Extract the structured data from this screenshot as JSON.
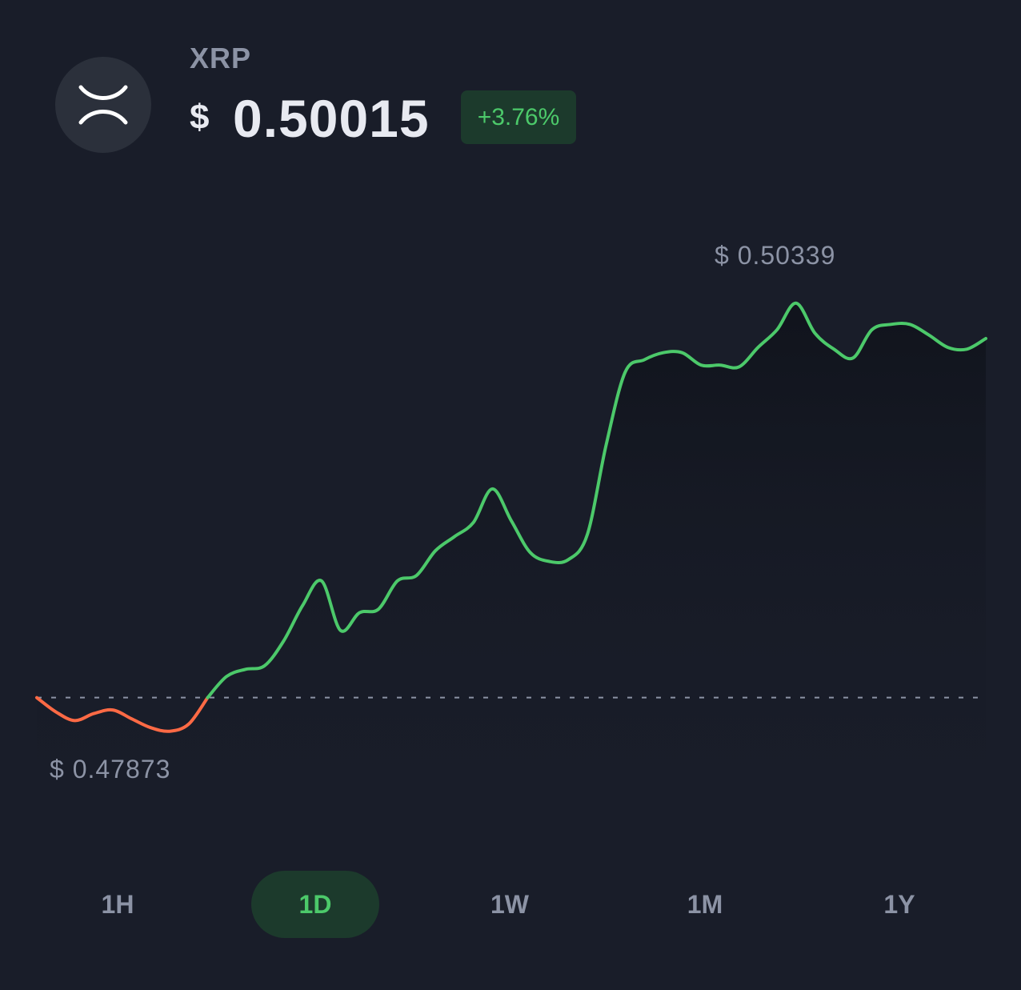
{
  "asset": {
    "symbol": "XRP",
    "icon": "xrp-logo-icon",
    "currency_symbol": "$",
    "price": "0.50015",
    "change": "+3.76%"
  },
  "colors": {
    "background": "#191d29",
    "positive": "#4cc96a",
    "negative": "#ff6a45",
    "muted_text": "#8c93a5",
    "badge_background": "#1c3a2c"
  },
  "chart_data": {
    "type": "line",
    "baseline": 0.4806,
    "high_label": "$ 0.50339",
    "low_label": "$ 0.47873",
    "y_range": [
      0.47873,
      0.50339
    ],
    "values": [
      0.4806,
      0.4798,
      0.4793,
      0.4797,
      0.4799,
      0.4794,
      0.4789,
      0.4787,
      0.4791,
      0.4806,
      0.4818,
      0.4822,
      0.4824,
      0.4838,
      0.4858,
      0.4872,
      0.4844,
      0.4854,
      0.4856,
      0.4872,
      0.4875,
      0.4889,
      0.4897,
      0.4905,
      0.4924,
      0.4906,
      0.4888,
      0.4883,
      0.4884,
      0.4898,
      0.4949,
      0.499,
      0.4997,
      0.5001,
      0.5001,
      0.4994,
      0.4994,
      0.4993,
      0.5004,
      0.5014,
      0.5029,
      0.5012,
      0.5003,
      0.4998,
      0.5014,
      0.5017,
      0.5017,
      0.5011,
      0.5004,
      0.5003,
      0.5009
    ]
  },
  "ranges": [
    {
      "label": "1H",
      "active": false
    },
    {
      "label": "1D",
      "active": true
    },
    {
      "label": "1W",
      "active": false
    },
    {
      "label": "1M",
      "active": false
    },
    {
      "label": "1Y",
      "active": false
    }
  ]
}
